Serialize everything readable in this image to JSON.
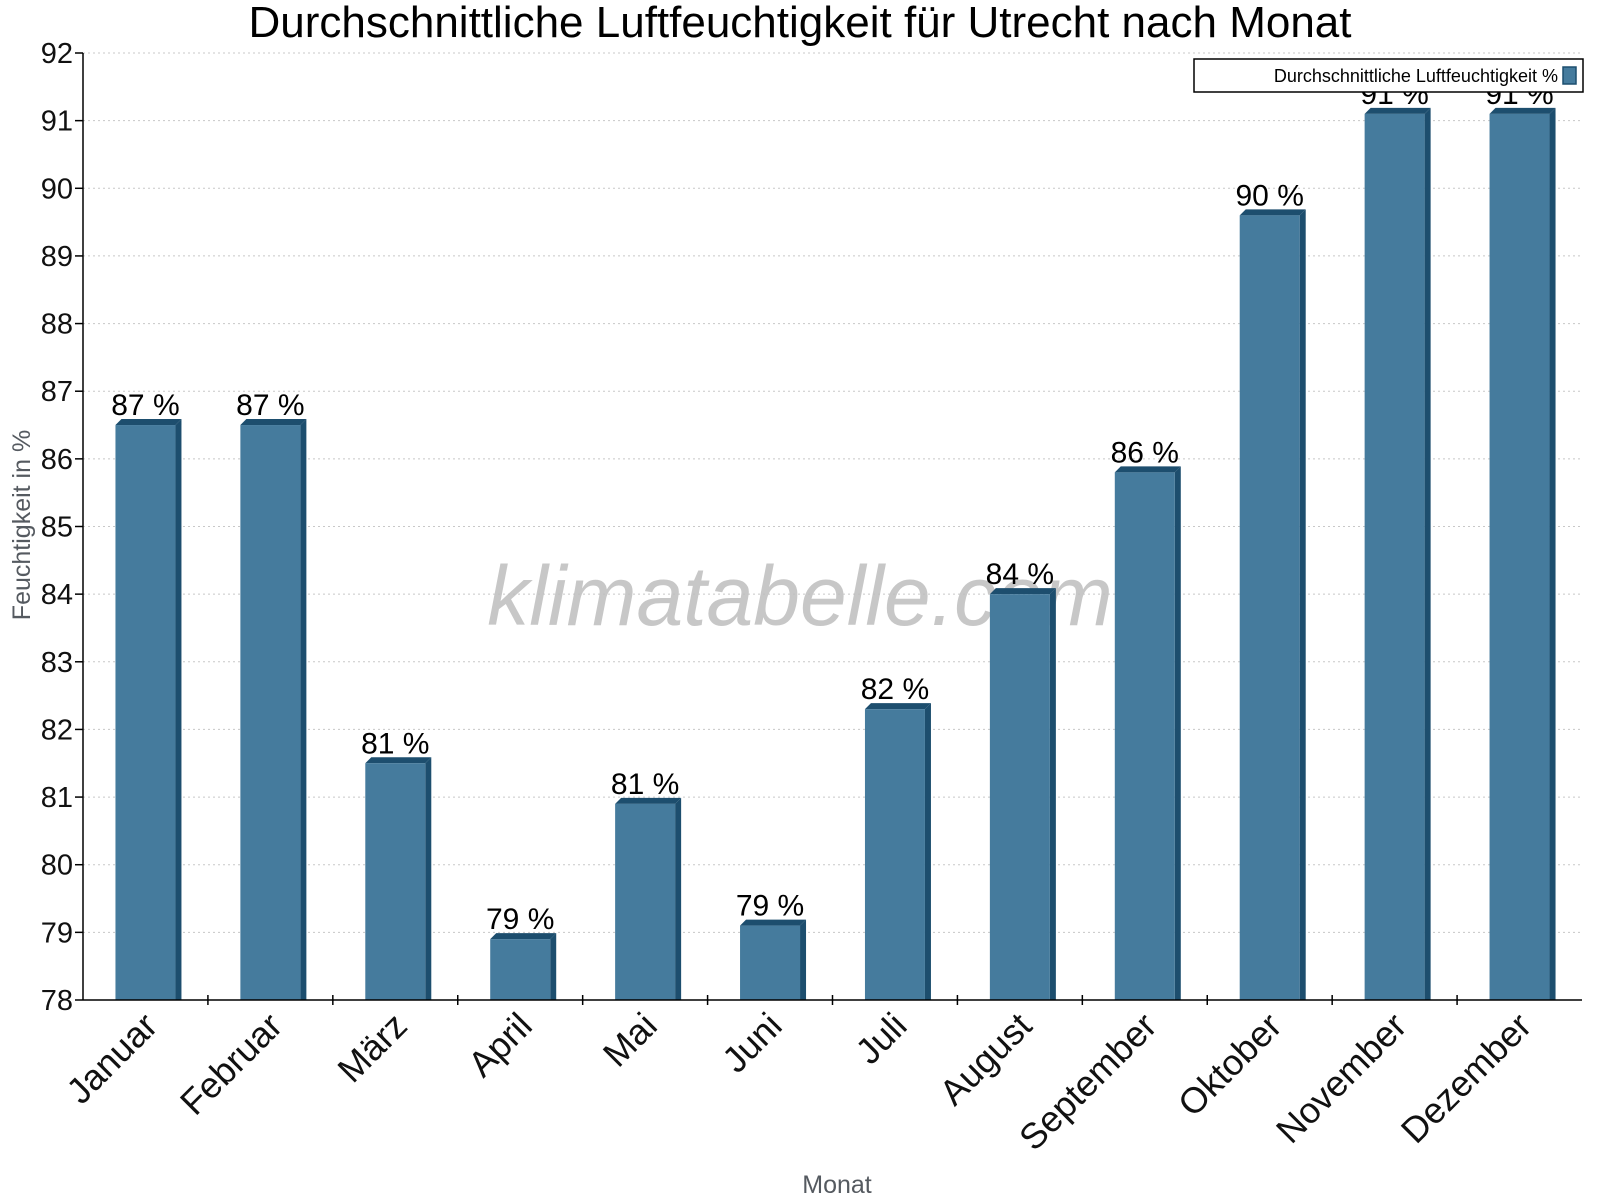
{
  "chart_data": {
    "type": "bar",
    "title": "Durchschnittliche Luftfeuchtigkeit für Utrecht nach Monat",
    "xlabel": "Monat",
    "ylabel": "Feuchtigkeit in %",
    "categories": [
      "Januar",
      "Februar",
      "März",
      "April",
      "Mai",
      "Juni",
      "Juli",
      "August",
      "September",
      "Oktober",
      "November",
      "Dezember"
    ],
    "series": [
      {
        "name": "Durchschnittliche Luftfeuchtigkeit %",
        "values": [
          86.5,
          86.5,
          81.5,
          78.9,
          80.9,
          79.1,
          82.3,
          84.0,
          85.8,
          89.6,
          91.1,
          91.1
        ],
        "labels": [
          "87 %",
          "87 %",
          "81 %",
          "79 %",
          "81 %",
          "79 %",
          "82 %",
          "84 %",
          "86 %",
          "90 %",
          "91 %",
          "91 %"
        ]
      }
    ],
    "ylim": [
      78,
      92
    ],
    "yticks": [
      "78",
      "79",
      "80",
      "81",
      "82",
      "83",
      "84",
      "85",
      "86",
      "87",
      "88",
      "89",
      "90",
      "91",
      "92"
    ],
    "grid": true,
    "legend_position": "top-right",
    "colors": {
      "bar": "#457b9d",
      "bar_edge": "#1d4e6e",
      "grid": "#c8c8c8"
    },
    "watermark": "klimatabelle.com"
  }
}
